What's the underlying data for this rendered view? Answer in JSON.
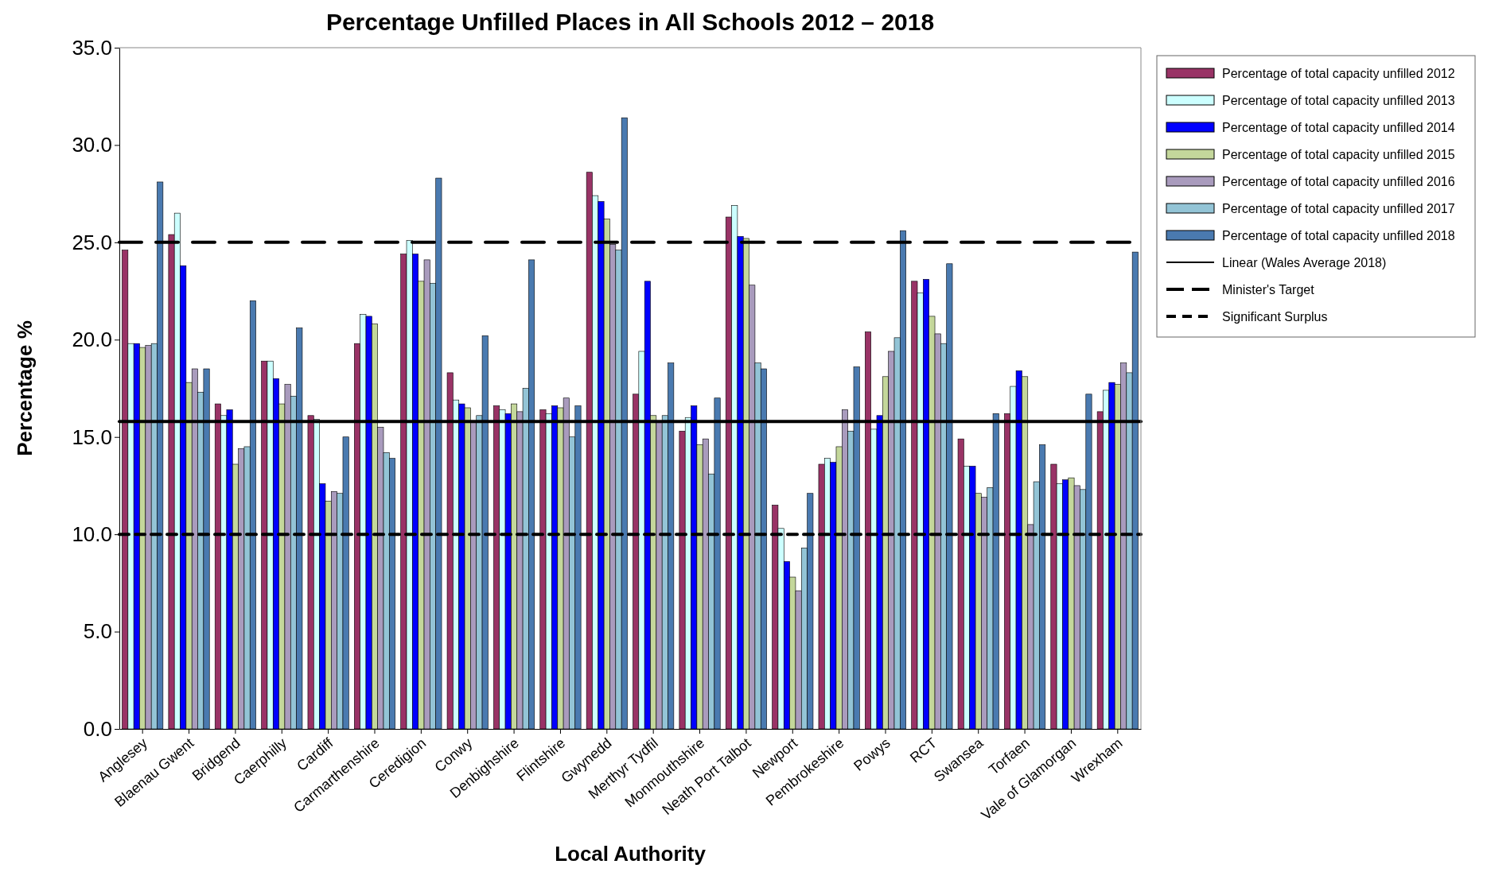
{
  "chart_data": {
    "type": "bar",
    "title": "Percentage Unfilled Places in All Schools 2012 – 2018",
    "xlabel": "Local Authority",
    "ylabel": "Percentage %",
    "categories": [
      "Anglesey",
      "Blaenau Gwent",
      "Bridgend",
      "Caerphilly",
      "Cardiff",
      "Carmarthenshire",
      "Ceredigion",
      "Conwy",
      "Denbighshire",
      "Flintshire",
      "Gwynedd",
      "Merthyr Tydfil",
      "Monmouthshire",
      "Neath Port Talbot",
      "Newport",
      "Pembrokeshire",
      "Powys",
      "RCT",
      "Swansea",
      "Torfaen",
      "Vale of Glamorgan",
      "Wrexham"
    ],
    "series": [
      {
        "name": "Percentage of total capacity unfilled 2012",
        "color": "#993366",
        "values": [
          24.6,
          25.4,
          16.7,
          18.9,
          16.1,
          19.8,
          24.4,
          18.3,
          16.6,
          16.4,
          28.6,
          17.2,
          15.3,
          26.3,
          11.5,
          13.6,
          20.4,
          23.0,
          14.9,
          16.2,
          13.6,
          16.3
        ]
      },
      {
        "name": "Percentage of total capacity unfilled 2013",
        "color": "#ccffff",
        "values": [
          19.8,
          26.5,
          16.1,
          18.9,
          15.9,
          21.3,
          25.1,
          16.9,
          16.4,
          16.2,
          27.4,
          19.4,
          16.0,
          26.9,
          10.3,
          13.9,
          15.4,
          22.4,
          13.5,
          17.6,
          12.6,
          17.4
        ]
      },
      {
        "name": "Percentage of total capacity unfilled 2014",
        "color": "#0000ff",
        "values": [
          19.8,
          23.8,
          16.4,
          18.0,
          12.6,
          21.2,
          24.4,
          16.7,
          16.2,
          16.6,
          27.1,
          23.0,
          16.6,
          25.3,
          8.6,
          13.7,
          16.1,
          23.1,
          13.5,
          18.4,
          12.8,
          17.8
        ]
      },
      {
        "name": "Percentage of total capacity unfilled 2015",
        "color": "#c4d79b",
        "values": [
          19.6,
          17.8,
          13.6,
          16.7,
          11.7,
          20.8,
          23.0,
          16.5,
          16.7,
          16.5,
          26.2,
          16.1,
          14.6,
          25.2,
          7.8,
          14.5,
          18.1,
          21.2,
          12.1,
          18.1,
          12.9,
          17.7
        ]
      },
      {
        "name": "Percentage of total capacity unfilled 2016",
        "color": "#a99bbd",
        "values": [
          19.7,
          18.5,
          14.4,
          17.7,
          12.2,
          15.5,
          24.1,
          15.8,
          16.3,
          17.0,
          24.9,
          15.8,
          14.9,
          22.8,
          7.1,
          16.4,
          19.4,
          20.3,
          11.9,
          10.5,
          12.5,
          18.8
        ]
      },
      {
        "name": "Percentage of total capacity unfilled 2017",
        "color": "#93c4d6",
        "values": [
          19.8,
          17.3,
          14.5,
          17.1,
          12.1,
          14.2,
          22.9,
          16.1,
          17.5,
          15.0,
          24.6,
          16.1,
          13.1,
          18.8,
          9.3,
          15.3,
          20.1,
          19.8,
          12.4,
          12.7,
          12.3,
          18.3
        ]
      },
      {
        "name": "Percentage of total capacity unfilled 2018",
        "color": "#4a7ab0",
        "values": [
          28.1,
          18.5,
          22.0,
          20.6,
          15.0,
          13.9,
          28.3,
          20.2,
          24.1,
          16.6,
          31.4,
          18.8,
          17.0,
          18.5,
          12.1,
          18.6,
          25.6,
          23.9,
          16.2,
          14.6,
          17.2,
          24.5
        ]
      }
    ],
    "ylim": [
      0,
      35
    ],
    "yticks": [
      {
        "value": 0,
        "label": "0.0"
      },
      {
        "value": 5,
        "label": "5.0"
      },
      {
        "value": 10,
        "label": "10.0"
      },
      {
        "value": 15,
        "label": "15.0"
      },
      {
        "value": 20,
        "label": "20.0"
      },
      {
        "value": 25,
        "label": "25.0"
      },
      {
        "value": 30,
        "label": "30.0"
      },
      {
        "value": 35,
        "label": "35.0"
      }
    ],
    "ref_lines": [
      {
        "axis": "y",
        "value": 15.8,
        "label": "Linear (Wales Average 2018)",
        "color": "#000000",
        "line_style": "solid"
      },
      {
        "axis": "y",
        "value": 25,
        "label": "Minister's Target",
        "color": "#000000",
        "line_style": "dashed"
      },
      {
        "axis": "y",
        "value": 10,
        "label": "Significant Surplus",
        "color": "#000000",
        "line_style": "dotted"
      }
    ],
    "legend": "right",
    "grid": false
  }
}
